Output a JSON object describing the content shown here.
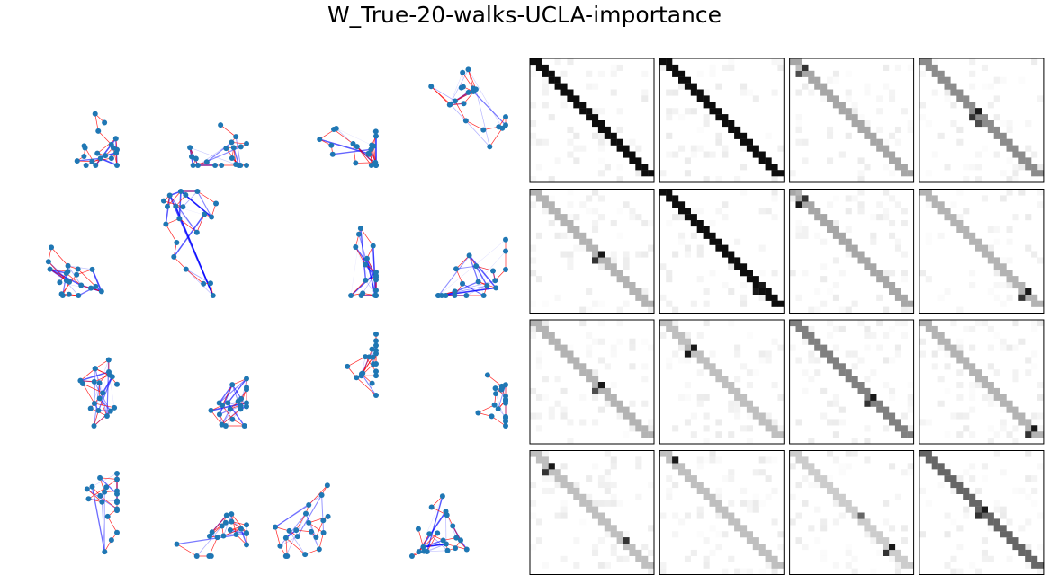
{
  "title": "W_True-20-walks-UCLA-importance",
  "graph_grid": {
    "rows": 4,
    "cols": 4,
    "nodes_per_graph": 20,
    "node_color": "#1f77b4",
    "walk_edge_color": "#ff0000",
    "weight_edge_color": "#0000ff"
  },
  "matrix_grid": {
    "rows": 4,
    "cols": 4,
    "size": 20,
    "colormap": "Greys"
  },
  "matrices": [
    {
      "mode": "diag",
      "diag": 0.95,
      "extra": []
    },
    {
      "mode": "diag",
      "diag": 0.95,
      "extra": []
    },
    {
      "mode": "diag",
      "diag": 0.35,
      "extra": [
        [
          1,
          2,
          0.8
        ],
        [
          2,
          1,
          0.7
        ],
        [
          1,
          1,
          0.25
        ]
      ]
    },
    {
      "mode": "diag",
      "diag": 0.45,
      "extra": [
        [
          8,
          9,
          0.9
        ],
        [
          9,
          8,
          0.8
        ],
        [
          10,
          9,
          0.7
        ]
      ]
    },
    {
      "mode": "diag",
      "diag": 0.3,
      "extra": [
        [
          10,
          11,
          0.9
        ],
        [
          11,
          10,
          0.8
        ]
      ]
    },
    {
      "mode": "diag",
      "diag": 0.95,
      "extra": [
        [
          15,
          16,
          0.9
        ],
        [
          16,
          15,
          0.9
        ]
      ]
    },
    {
      "mode": "diag",
      "diag": 0.35,
      "extra": [
        [
          1,
          2,
          0.8
        ],
        [
          2,
          1,
          0.9
        ],
        [
          0,
          1,
          0.3
        ]
      ]
    },
    {
      "mode": "diag",
      "diag": 0.3,
      "extra": [
        [
          16,
          17,
          0.9
        ],
        [
          17,
          16,
          0.8
        ]
      ]
    },
    {
      "mode": "diag",
      "diag": 0.3,
      "extra": [
        [
          10,
          11,
          0.9
        ],
        [
          11,
          10,
          0.7
        ],
        [
          9,
          10,
          0.3
        ]
      ]
    },
    {
      "mode": "diag",
      "diag": 0.25,
      "extra": [
        [
          4,
          5,
          0.9
        ],
        [
          5,
          4,
          0.9
        ],
        [
          4,
          4,
          0.3
        ]
      ]
    },
    {
      "mode": "diag",
      "diag": 0.5,
      "extra": [
        [
          12,
          13,
          0.9
        ],
        [
          13,
          12,
          0.8
        ]
      ]
    },
    {
      "mode": "diag",
      "diag": 0.3,
      "extra": [
        [
          17,
          18,
          0.9
        ],
        [
          18,
          17,
          0.8
        ]
      ]
    },
    {
      "mode": "diag",
      "diag": 0.25,
      "extra": [
        [
          2,
          3,
          0.9
        ],
        [
          3,
          2,
          0.8
        ],
        [
          14,
          15,
          0.8
        ]
      ]
    },
    {
      "mode": "diag",
      "diag": 0.25,
      "extra": [
        [
          1,
          2,
          0.9
        ]
      ]
    },
    {
      "mode": "diag",
      "diag": 0.2,
      "extra": [
        [
          15,
          16,
          0.9
        ],
        [
          16,
          15,
          0.8
        ],
        [
          10,
          11,
          0.6
        ]
      ]
    },
    {
      "mode": "diag",
      "diag": 0.6,
      "extra": [
        [
          9,
          10,
          0.9
        ],
        [
          10,
          9,
          0.8
        ]
      ]
    }
  ]
}
